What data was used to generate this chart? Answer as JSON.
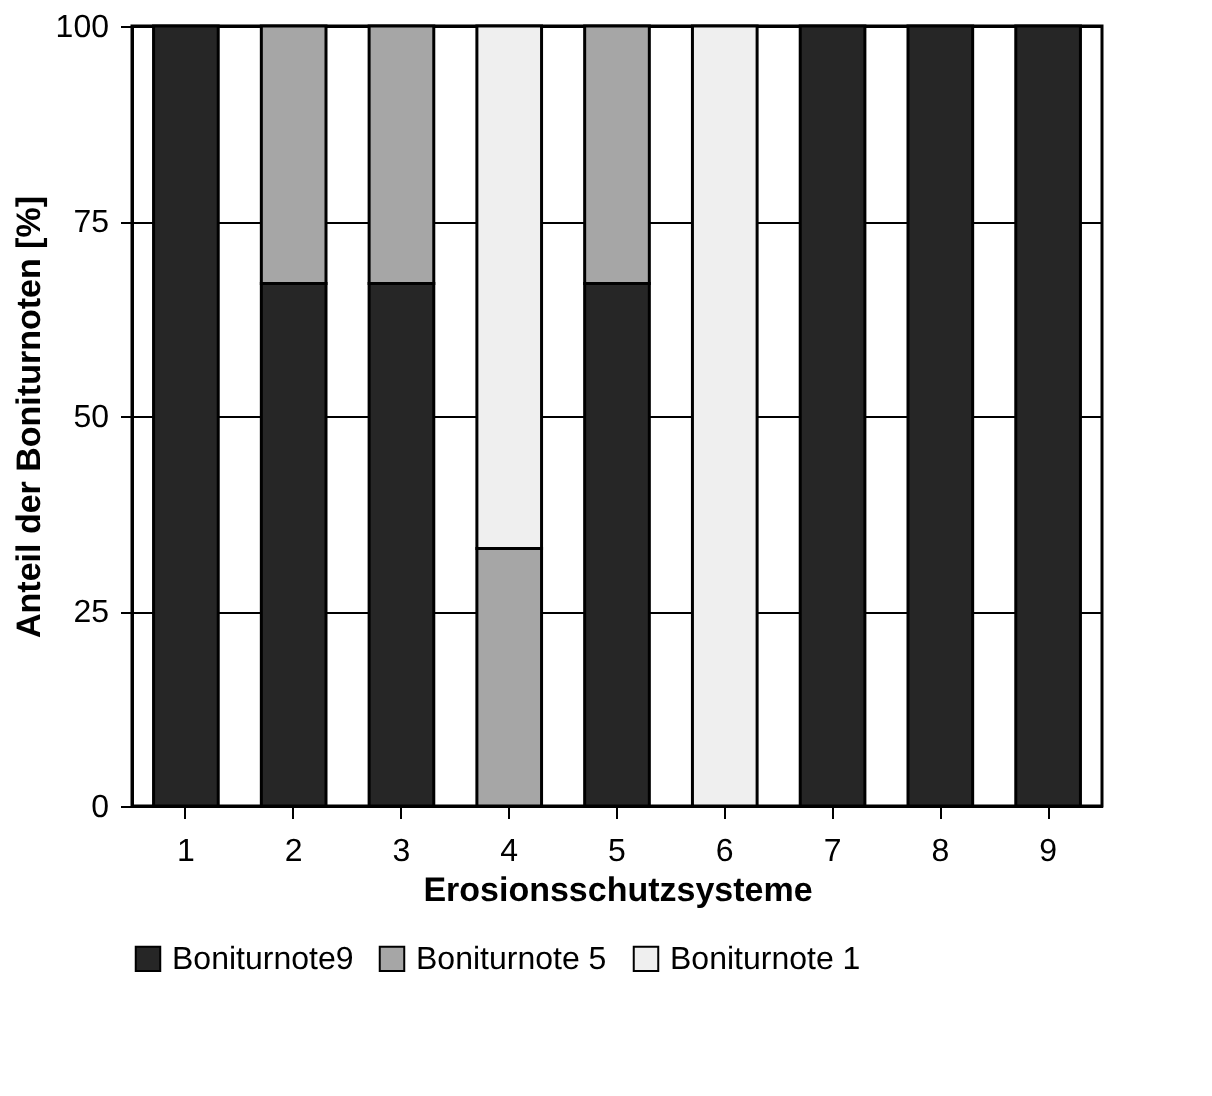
{
  "chart_data": {
    "type": "bar",
    "stacked": true,
    "xlabel": "Erosionsschutzsysteme",
    "ylabel": "Anteil der Boniturnoten [%]",
    "categories": [
      "1",
      "2",
      "3",
      "4",
      "5",
      "6",
      "7",
      "8",
      "9"
    ],
    "series": [
      {
        "name": "Boniturnote9",
        "color": "#262626",
        "values": [
          100,
          67,
          67,
          0,
          67,
          0,
          100,
          100,
          100
        ]
      },
      {
        "name": "Boniturnote 5",
        "color": "#a6a6a6",
        "values": [
          0,
          33,
          33,
          33,
          33,
          0,
          0,
          0,
          0
        ]
      },
      {
        "name": "Boniturnote 1",
        "color": "#efefef",
        "values": [
          0,
          0,
          0,
          67,
          0,
          100,
          0,
          0,
          0
        ]
      }
    ],
    "ylim": [
      0,
      100
    ],
    "yticks": [
      0,
      25,
      50,
      75,
      100
    ],
    "grid": "y",
    "legend": "bottom"
  }
}
